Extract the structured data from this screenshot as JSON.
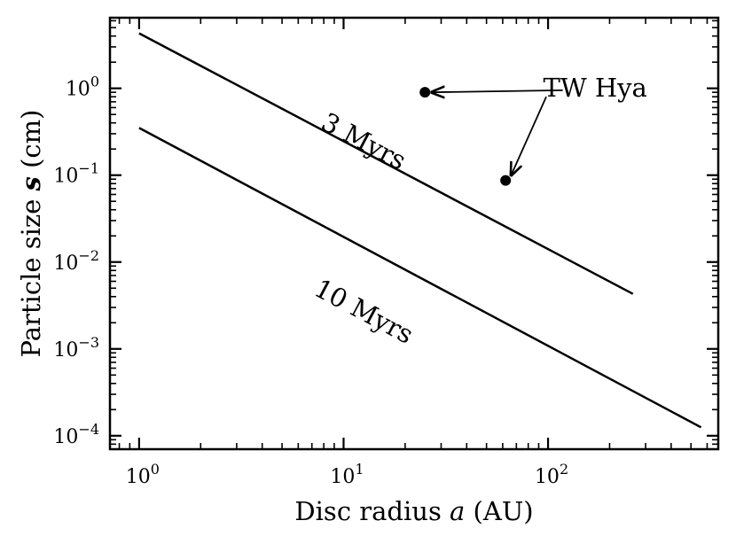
{
  "chart_data": {
    "type": "line",
    "xlabel": "Disc radius a (AU)",
    "ylabel": "Particle size s (cm)",
    "xscale": "log",
    "yscale": "log",
    "xlim": [
      0.72,
      680
    ],
    "ylim": [
      7e-05,
      6.5
    ],
    "x_ticks": [
      1,
      10,
      100
    ],
    "x_tick_labels": [
      "10^0",
      "10^1",
      "10^2"
    ],
    "y_ticks": [
      0.0001,
      0.001,
      0.01,
      0.1,
      1
    ],
    "y_tick_labels": [
      "10^-4",
      "10^-3",
      "10^-2",
      "10^-1",
      "10^0"
    ],
    "grid": false,
    "series": [
      {
        "name": "3 Myrs",
        "x": [
          1,
          260
        ],
        "y": [
          4.3,
          0.0043
        ],
        "color": "#000000",
        "label_position": {
          "x": 12,
          "y": 0.2
        }
      },
      {
        "name": "10 Myrs",
        "x": [
          1,
          560
        ],
        "y": [
          0.35,
          0.000125
        ],
        "color": "#000000",
        "label_position": {
          "x": 12,
          "y": 0.0022
        }
      }
    ],
    "points": {
      "label": "TW Hya",
      "x": [
        25,
        62
      ],
      "y": [
        0.9,
        0.087
      ],
      "color": "#000000"
    },
    "annotation": {
      "text": "TW Hya",
      "text_anchor": {
        "x": 170,
        "y": 0.8
      },
      "arrows": [
        {
          "from": {
            "x": 118,
            "y": 0.95
          },
          "to": {
            "x": 27,
            "y": 0.9
          }
        },
        {
          "from": {
            "x": 98,
            "y": 0.8
          },
          "to": {
            "x": 66,
            "y": 0.1
          }
        }
      ]
    }
  }
}
